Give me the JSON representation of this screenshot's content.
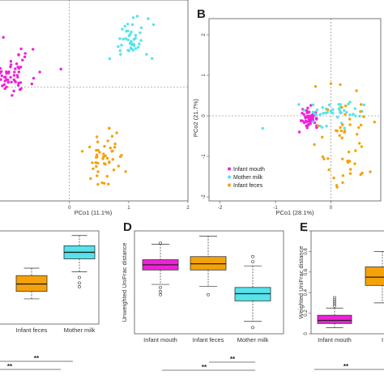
{
  "colors": {
    "magenta": "#ee22d8",
    "cyan": "#55e3ec",
    "orange": "#f5a20a",
    "dashed": "#777777",
    "box_stroke": "#444444"
  },
  "chart_data": [
    {
      "id": "A",
      "letter": "",
      "type": "scatter",
      "xlabel": "PCo1 (11.1%)",
      "ylabel": "",
      "xlim": [
        -1.2,
        2
      ],
      "ylim": [
        -2.1,
        1.6
      ],
      "xticks": [
        0,
        1,
        2
      ],
      "yticks": [],
      "series": [
        {
          "color": "magenta",
          "center": [
            -1.0,
            0.25
          ],
          "spread": [
            0.22,
            0.2
          ],
          "n": 70
        },
        {
          "color": "cyan",
          "center": [
            1.0,
            0.85
          ],
          "spread": [
            0.17,
            0.22
          ],
          "n": 45
        },
        {
          "color": "orange",
          "center": [
            0.62,
            -1.3
          ],
          "spread": [
            0.18,
            0.3
          ],
          "n": 50
        }
      ]
    },
    {
      "id": "B",
      "letter": "B",
      "type": "scatter",
      "xlabel": "PCo1 (28.1%)",
      "ylabel": "PCo2 (21.7%)",
      "xlim": [
        -2.2,
        0.9
      ],
      "ylim": [
        -2.1,
        2.4
      ],
      "xticks": [
        -2,
        -1,
        0
      ],
      "yticks": [
        2,
        1,
        0,
        -1,
        -2
      ],
      "legend": [
        {
          "label": "Infant mouth",
          "color": "magenta"
        },
        {
          "label": "Mother milk",
          "color": "cyan"
        },
        {
          "label": "Infant feces",
          "color": "orange"
        }
      ],
      "series": [
        {
          "color": "magenta",
          "center": [
            -0.38,
            -0.05
          ],
          "spread": [
            0.07,
            0.1
          ],
          "n": 60
        },
        {
          "color": "cyan",
          "center": [
            0.05,
            0.08
          ],
          "spread": [
            0.3,
            0.16
          ],
          "n": 45
        },
        {
          "color": "orange",
          "center": [
            0.25,
            -0.6
          ],
          "spread": [
            0.28,
            0.7
          ],
          "n": 55
        }
      ]
    },
    {
      "id": "C",
      "letter": "",
      "type": "box",
      "ylabel": "",
      "ylim": [
        0,
        1
      ],
      "categories": [
        "",
        "Infant feces",
        "Mother milk"
      ],
      "boxes": [
        null,
        {
          "color": "orange",
          "whislo": 0.27,
          "q1": 0.35,
          "med": 0.43,
          "q3": 0.52,
          "whishi": 0.6,
          "outliers": []
        },
        {
          "color": "cyan",
          "whislo": 0.56,
          "q1": 0.7,
          "med": 0.77,
          "q3": 0.84,
          "whishi": 0.95,
          "outliers": [
            0.5,
            0.44,
            0.4
          ]
        }
      ],
      "significance": [
        {
          "label": "**"
        },
        {
          "label": "**"
        }
      ]
    },
    {
      "id": "D",
      "letter": "D",
      "type": "box",
      "ylabel": "Unweighted UniFrac distance",
      "ylim": [
        0,
        1
      ],
      "categories": [
        "Infant mouth",
        "Infant feces",
        "Mother milk"
      ],
      "boxes": [
        {
          "color": "magenta",
          "whislo": 0.48,
          "q1": 0.62,
          "med": 0.67,
          "q3": 0.72,
          "whishi": 0.87,
          "outliers": [
            0.88,
            0.45,
            0.41,
            0.38
          ]
        },
        {
          "color": "orange",
          "whislo": 0.46,
          "q1": 0.62,
          "med": 0.68,
          "q3": 0.75,
          "whishi": 0.95,
          "outliers": [
            0.38
          ]
        },
        {
          "color": "cyan",
          "whislo": 0.12,
          "q1": 0.32,
          "med": 0.39,
          "q3": 0.45,
          "whishi": 0.66,
          "outliers": [
            0.75,
            0.7,
            0.06
          ]
        }
      ],
      "significance": [
        {
          "label": "**"
        },
        {
          "label": "**"
        }
      ]
    },
    {
      "id": "E",
      "letter": "E",
      "type": "box",
      "ylabel": "Weighted UniFrac distance",
      "ylim": [
        0,
        1
      ],
      "yticks": [
        0,
        0.2,
        0.4,
        0.6,
        0.8,
        1
      ],
      "categories": [
        "Infant mouth",
        "I"
      ],
      "boxes": [
        {
          "color": "magenta",
          "whislo": 0.06,
          "q1": 0.1,
          "med": 0.13,
          "q3": 0.18,
          "whishi": 0.25,
          "outliers": [
            0.27,
            0.29,
            0.31,
            0.33,
            0.35
          ]
        },
        {
          "color": "orange",
          "whislo": 0.3,
          "q1": 0.47,
          "med": 0.55,
          "q3": 0.65,
          "whishi": 0.8,
          "outliers": []
        }
      ],
      "significance": [
        {
          "label": "**"
        }
      ]
    }
  ]
}
